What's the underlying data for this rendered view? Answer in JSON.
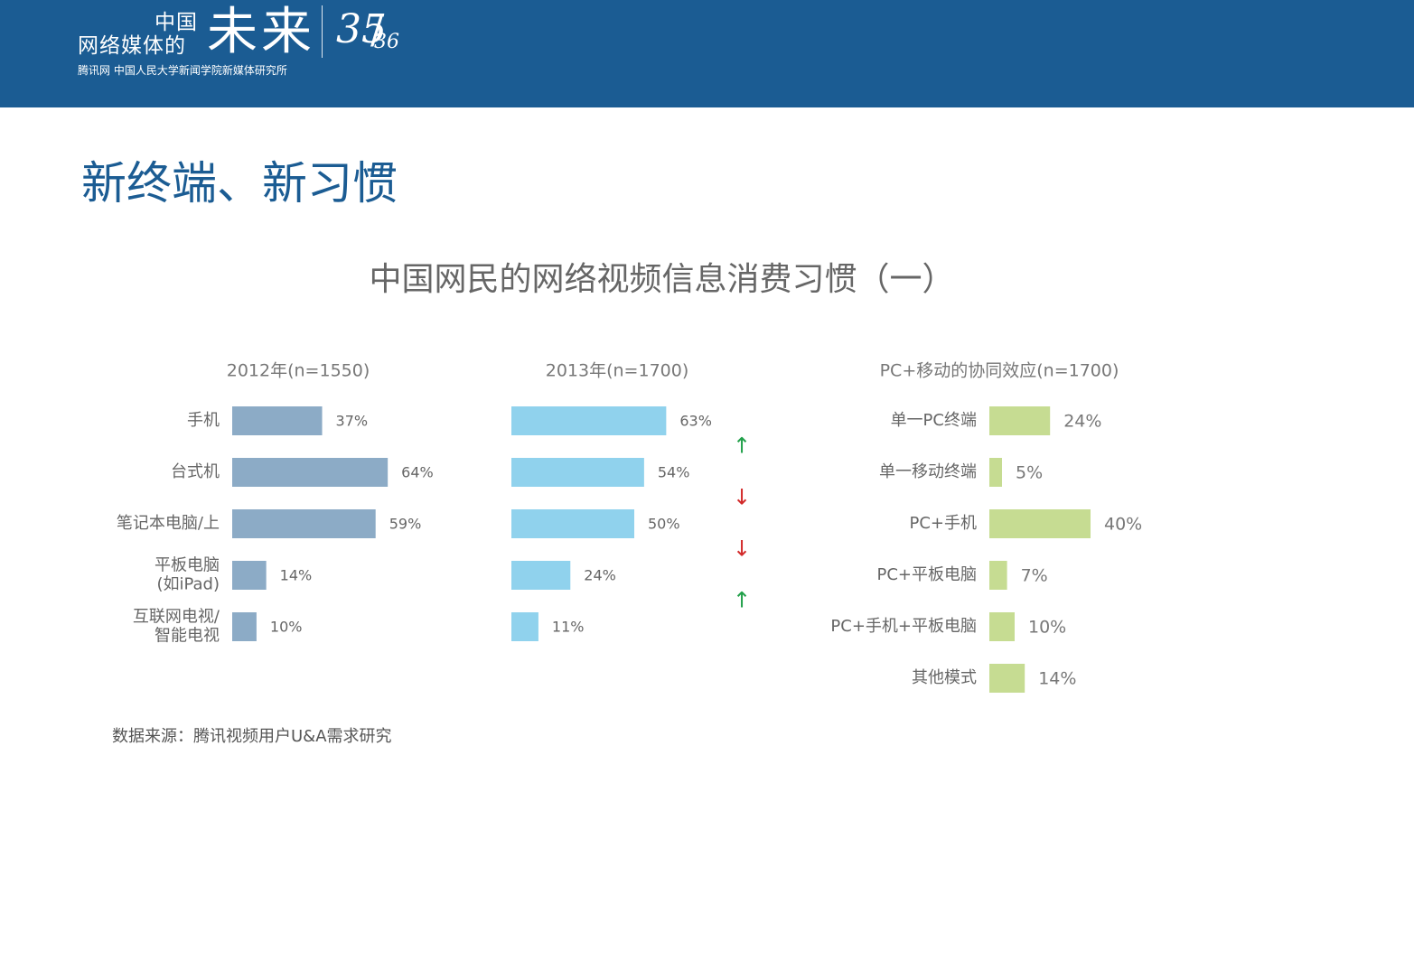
{
  "header": {
    "brand_zhongguo": "中国",
    "brand_small": "网络媒体的",
    "brand_big": "未来",
    "page_current": "35",
    "page_separator": "/",
    "page_total": "36",
    "subtitle": "腾讯网  中国人民大学新闻学院新媒体研究所"
  },
  "slide_title": "新终端、新习惯",
  "source_text": "数据来源：腾讯视频用户U&A需求研究",
  "colors": {
    "header_bg": "#1b5c93",
    "bar_2012": "#8cabc6",
    "bar_2013": "#90d2ed",
    "bar_pc_mobile": "#c6dc92",
    "arrow_up": "#21a04a",
    "arrow_down": "#d22a2a"
  },
  "chart_data": {
    "title": "中国网民的网络视频信息消费习惯（一）",
    "type": "bar",
    "orientation": "horizontal",
    "charts": [
      {
        "title": "2012年(n=1550)",
        "categories": [
          "手机",
          "台式机",
          "笔记本电脑/上",
          "平板电脑\n(如iPad)",
          "互联网电视/\n智能电视"
        ],
        "values": [
          37,
          64,
          59,
          14,
          10
        ],
        "labels": [
          "37%",
          "64%",
          "59%",
          "14%",
          "10%"
        ]
      },
      {
        "title": "2013年(n=1700)",
        "categories": [
          "手机",
          "台式机",
          "笔记本电脑/上",
          "平板电脑\n(如iPad)",
          "互联网电视/\n智能电视"
        ],
        "values": [
          63,
          54,
          50,
          24,
          11
        ],
        "labels": [
          "63%",
          "54%",
          "50%",
          "24%",
          "11%"
        ]
      },
      {
        "title": "PC+移动的协同效应(n=1700)",
        "categories": [
          "单一PC终端",
          "单一移动终端",
          "PC+手机",
          "PC+平板电脑",
          "PC+手机+平板电脑",
          "其他模式"
        ],
        "values": [
          24,
          5,
          40,
          7,
          10,
          14
        ],
        "labels": [
          "24%",
          "5%",
          "40%",
          "7%",
          "10%",
          "14%"
        ]
      }
    ],
    "change_arrows": [
      "up",
      "down",
      "down",
      "up"
    ],
    "change_arrow_glyphs": [
      "↑",
      "↓",
      "↓",
      "↑"
    ],
    "unit": "%",
    "grid": false,
    "legend": "none"
  }
}
